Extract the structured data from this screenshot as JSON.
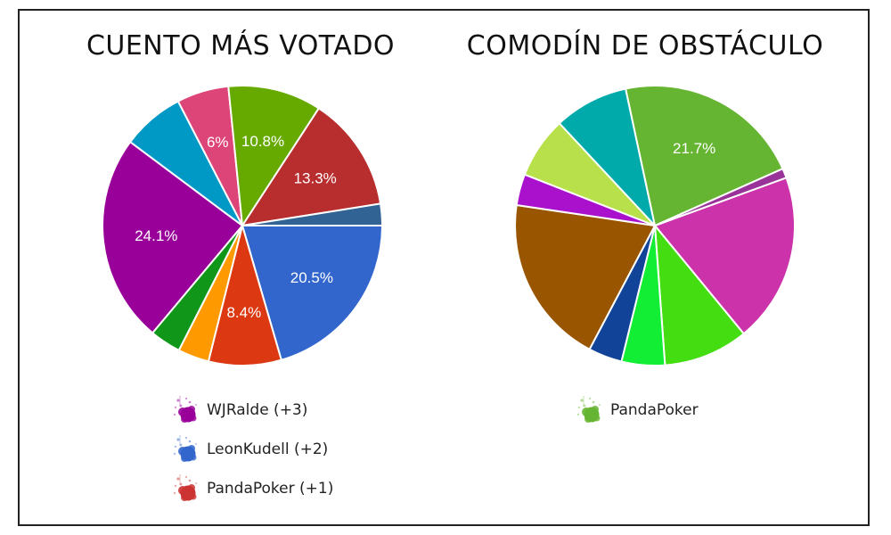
{
  "chart_data": [
    {
      "type": "pie",
      "title": "CUENTO MÁS VOTADO",
      "start_angle": 90,
      "slices": [
        {
          "value": 20.5,
          "label": "20.5%",
          "color": "#3366cc"
        },
        {
          "value": 8.4,
          "label": "8.4%",
          "color": "#dc3912"
        },
        {
          "value": 3.6,
          "label": "",
          "color": "#ff9900"
        },
        {
          "value": 3.6,
          "label": "",
          "color": "#109618"
        },
        {
          "value": 24.1,
          "label": "24.1%",
          "color": "#990099"
        },
        {
          "value": 7.2,
          "label": "",
          "color": "#0099c6"
        },
        {
          "value": 6.0,
          "label": "6%",
          "color": "#dd4477"
        },
        {
          "value": 10.8,
          "label": "10.8%",
          "color": "#66aa00"
        },
        {
          "value": 13.3,
          "label": "13.3%",
          "color": "#b82e2e"
        },
        {
          "value": 2.5,
          "label": "",
          "color": "#316395"
        }
      ],
      "legend": [
        {
          "text": "WJRalde (+3)",
          "color": "#990099"
        },
        {
          "text": "LeonKudell (+2)",
          "color": "#3366cc"
        },
        {
          "text": "PandaPoker (+1)",
          "color": "#cc3333"
        }
      ]
    },
    {
      "type": "pie",
      "title": "COMODÍN DE OBSTÁCULO",
      "start_angle": 70,
      "slices": [
        {
          "value": 19.6,
          "label": "",
          "color": "#cc33aa"
        },
        {
          "value": 9.8,
          "label": "",
          "color": "#44dd11"
        },
        {
          "value": 5.0,
          "label": "",
          "color": "#11ee33"
        },
        {
          "value": 3.9,
          "label": "",
          "color": "#114499"
        },
        {
          "value": 19.6,
          "label": "",
          "color": "#995500"
        },
        {
          "value": 3.6,
          "label": "",
          "color": "#aa11cc"
        },
        {
          "value": 7.1,
          "label": "",
          "color": "#b8e04a"
        },
        {
          "value": 8.6,
          "label": "",
          "color": "#00aaaa"
        },
        {
          "value": 21.7,
          "label": "21.7%",
          "color": "#66b532"
        },
        {
          "value": 1.1,
          "label": "",
          "color": "#993399"
        }
      ],
      "legend": [
        {
          "text": "PandaPoker",
          "color": "#66b532"
        }
      ]
    }
  ]
}
